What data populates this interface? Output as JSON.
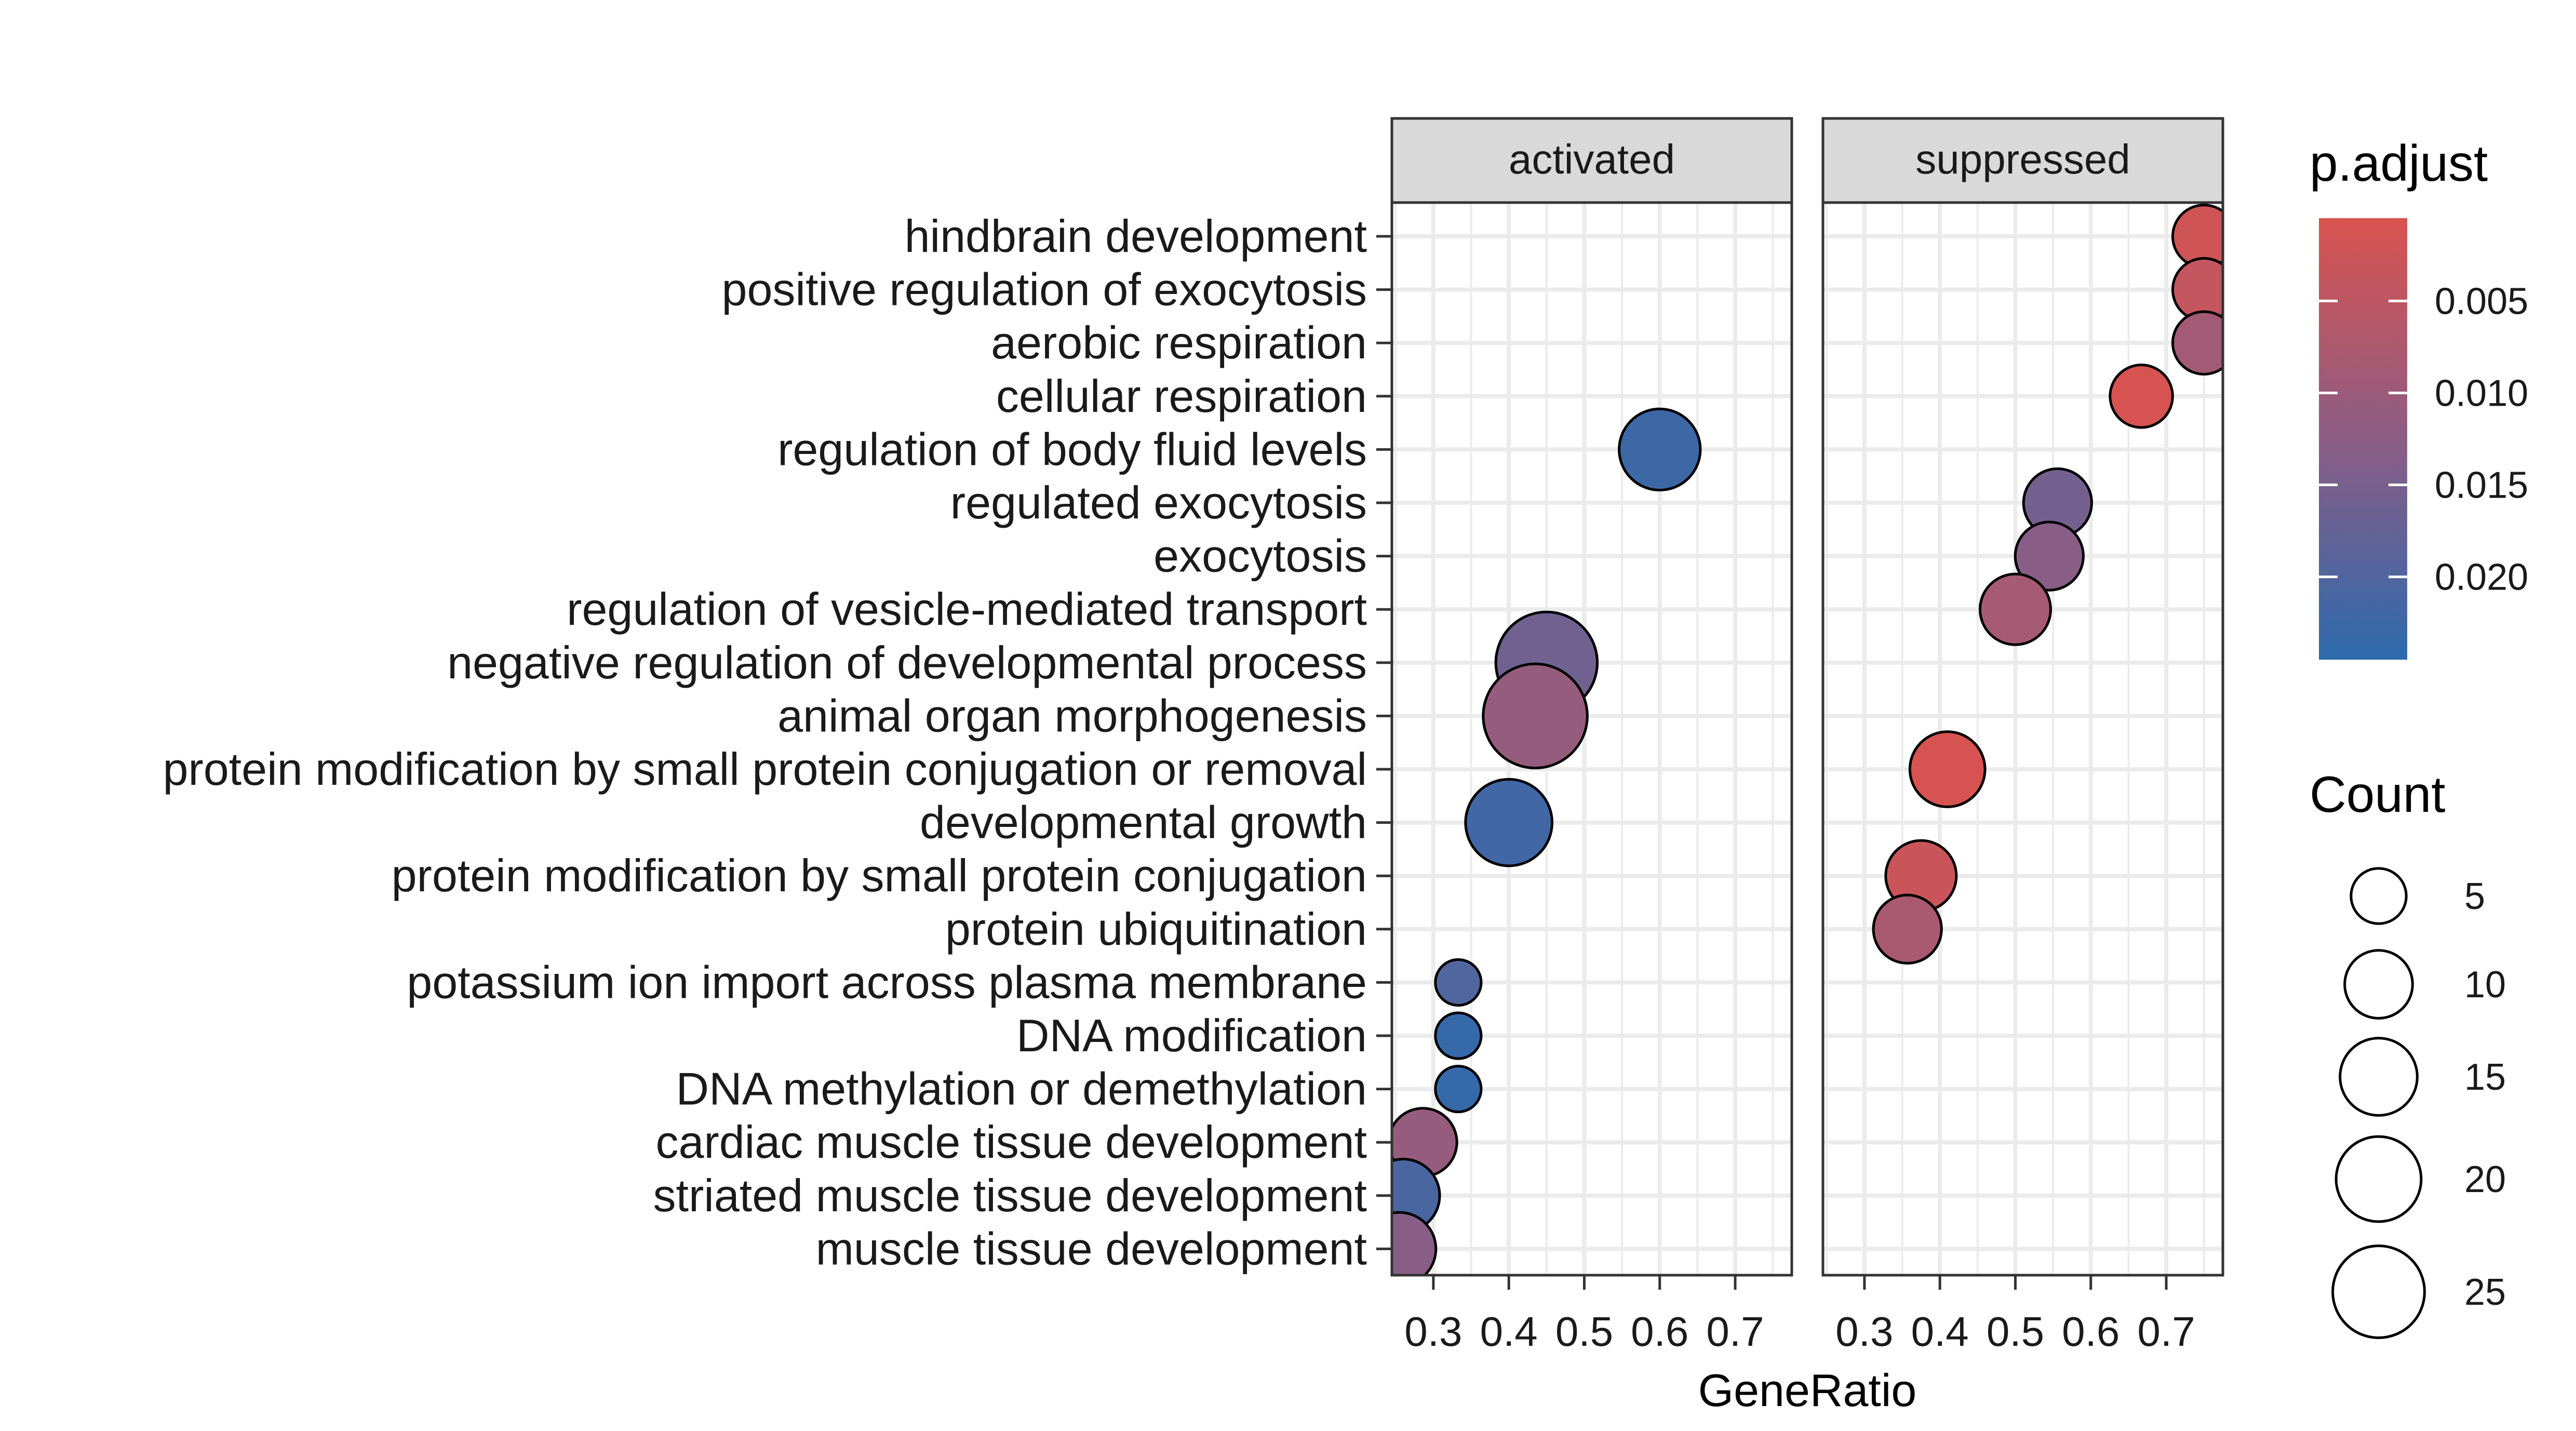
{
  "chart_data": {
    "type": "scatter",
    "subtype": "dot-plot",
    "xlabel": "GeneRatio",
    "xlim": [
      0.245,
      0.775
    ],
    "xticks": [
      0.3,
      0.4,
      0.5,
      0.6,
      0.7
    ],
    "xtick_labels": [
      "0.3",
      "0.4",
      "0.5",
      "0.6",
      "0.7"
    ],
    "grid": true,
    "panels": [
      "activated",
      "suppressed"
    ],
    "categories": [
      "hindbrain development",
      "positive regulation of exocytosis",
      "aerobic respiration",
      "cellular respiration",
      "regulation of body fluid levels",
      "regulated exocytosis",
      "exocytosis",
      "regulation of vesicle-mediated transport",
      "negative regulation of developmental process",
      "animal organ morphogenesis",
      "protein modification by small protein conjugation or removal",
      "developmental growth",
      "protein modification by small protein conjugation",
      "protein ubiquitination",
      "potassium ion import across plasma membrane",
      "DNA modification",
      "DNA methylation or demethylation",
      "cardiac muscle tissue development",
      "striated muscle tissue development",
      "muscle tissue development"
    ],
    "points": [
      {
        "panel": "activated",
        "category": "regulation of body fluid levels",
        "x": 0.6,
        "count": 14,
        "p_adjust": 0.0225
      },
      {
        "panel": "activated",
        "category": "negative regulation of developmental process",
        "x": 0.45,
        "count": 27,
        "p_adjust": 0.016
      },
      {
        "panel": "activated",
        "category": "animal organ morphogenesis",
        "x": 0.435,
        "count": 29,
        "p_adjust": 0.011
      },
      {
        "panel": "activated",
        "category": "developmental growth",
        "x": 0.4,
        "count": 17,
        "p_adjust": 0.022
      },
      {
        "panel": "activated",
        "category": "potassium ion import across plasma membrane",
        "x": 0.333,
        "count": 2,
        "p_adjust": 0.02
      },
      {
        "panel": "activated",
        "category": "DNA modification",
        "x": 0.333,
        "count": 2,
        "p_adjust": 0.0235
      },
      {
        "panel": "activated",
        "category": "DNA methylation or demethylation",
        "x": 0.333,
        "count": 2,
        "p_adjust": 0.0235
      },
      {
        "panel": "activated",
        "category": "cardiac muscle tissue development",
        "x": 0.286,
        "count": 8,
        "p_adjust": 0.011
      },
      {
        "panel": "activated",
        "category": "striated muscle tissue development",
        "x": 0.26,
        "count": 10,
        "p_adjust": 0.021
      },
      {
        "panel": "activated",
        "category": "muscle tissue development",
        "x": 0.255,
        "count": 10,
        "p_adjust": 0.013
      },
      {
        "panel": "suppressed",
        "category": "hindbrain development",
        "x": 0.75,
        "count": 6,
        "p_adjust": 0.002
      },
      {
        "panel": "suppressed",
        "category": "positive regulation of exocytosis",
        "x": 0.75,
        "count": 6,
        "p_adjust": 0.004
      },
      {
        "panel": "suppressed",
        "category": "aerobic respiration",
        "x": 0.75,
        "count": 6,
        "p_adjust": 0.009
      },
      {
        "panel": "suppressed",
        "category": "cellular respiration",
        "x": 0.667,
        "count": 6,
        "p_adjust": 0.001
      },
      {
        "panel": "suppressed",
        "category": "regulated exocytosis",
        "x": 0.556,
        "count": 8,
        "p_adjust": 0.0155
      },
      {
        "panel": "suppressed",
        "category": "exocytosis",
        "x": 0.545,
        "count": 8,
        "p_adjust": 0.013
      },
      {
        "panel": "suppressed",
        "category": "regulation of vesicle-mediated transport",
        "x": 0.5,
        "count": 9,
        "p_adjust": 0.0085
      },
      {
        "panel": "suppressed",
        "category": "protein modification by small protein conjugation or removal",
        "x": 0.41,
        "count": 11,
        "p_adjust": 0.001
      },
      {
        "panel": "suppressed",
        "category": "protein modification by small protein conjugation",
        "x": 0.375,
        "count": 9,
        "p_adjust": 0.003
      },
      {
        "panel": "suppressed",
        "category": "protein ubiquitination",
        "x": 0.357,
        "count": 8,
        "p_adjust": 0.008
      }
    ],
    "color_legend": {
      "title": "p.adjust",
      "labels": [
        "0.005",
        "0.010",
        "0.015",
        "0.020"
      ],
      "values": [
        0.005,
        0.01,
        0.015,
        0.02
      ],
      "range": [
        0.0005,
        0.0245
      ],
      "low_color": "#d9534f",
      "high_color": "#2d6aad"
    },
    "size_legend": {
      "title": "Count",
      "labels": [
        "5",
        "10",
        "15",
        "20",
        "25"
      ],
      "values": [
        5,
        10,
        15,
        20,
        25
      ]
    },
    "colors": {
      "strip_fill": "#d9d9d9",
      "grid": "#ebebeb",
      "point_outline": "#000000"
    }
  }
}
